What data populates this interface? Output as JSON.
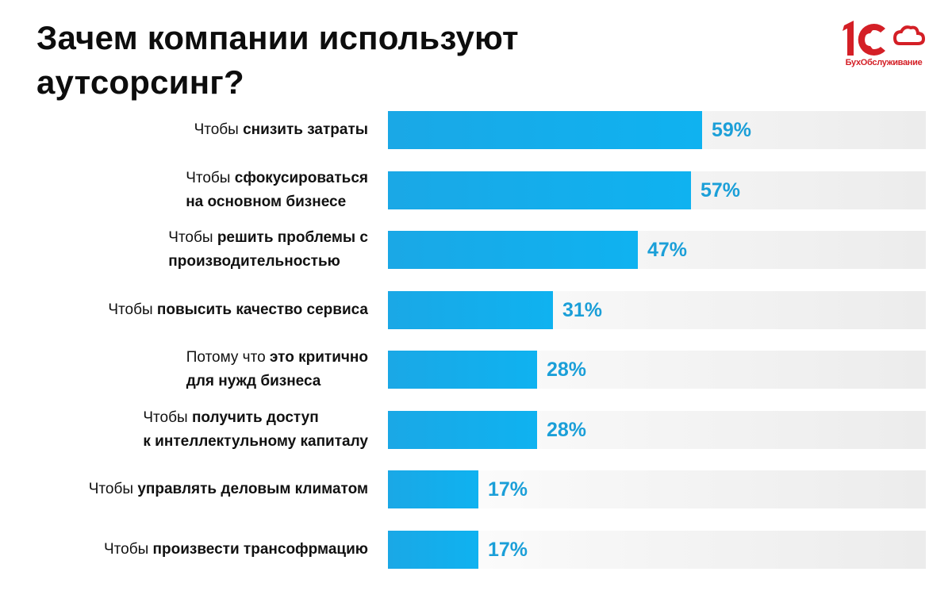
{
  "title": "Зачем компании используют аутсорсинг?",
  "logo": {
    "mark": "1С",
    "caption": "БухОбслуживание",
    "color": "#d41f26"
  },
  "colors": {
    "bar": "#10aeee",
    "value_text": "#1b9fd8",
    "track": "#eeeeee"
  },
  "chart_data": {
    "type": "bar",
    "orientation": "horizontal",
    "title": "Зачем компании используют аутсорсинг?",
    "xlim": [
      0,
      100
    ],
    "unit": "%",
    "categories": [
      {
        "normal": "Чтобы ",
        "bold": "снизить затраты",
        "lines": [
          "Чтобы снизить затраты"
        ]
      },
      {
        "normal": "Чтобы ",
        "bold": "сфокусироваться на основном бизнесе",
        "lines": [
          "Чтобы сфокусироваться",
          "на основном бизнесе"
        ]
      },
      {
        "normal": "Чтобы ",
        "bold": "решить проблемы с производительностью",
        "lines": [
          "Чтобы решить проблемы с",
          "производительностью"
        ]
      },
      {
        "normal": "Чтобы ",
        "bold": "повысить качество сервиса",
        "lines": [
          "Чтобы повысить качество сервиса"
        ]
      },
      {
        "normal": "Потому что ",
        "bold": "это критично для нужд бизнеса",
        "lines": [
          "Потому что это критично",
          "для нужд бизнеса"
        ]
      },
      {
        "normal": "Чтобы ",
        "bold": "получить доступ к интеллектульному капиталу",
        "lines": [
          "Чтобы получить доступ",
          "к интеллектульному капиталу"
        ]
      },
      {
        "normal": "Чтобы ",
        "bold": "управлять деловым климатом",
        "lines": [
          "Чтобы управлять деловым климатом"
        ]
      },
      {
        "normal": "Чтобы ",
        "bold": "произвести трансофрмацию",
        "lines": [
          "Чтобы произвести трансофрмацию"
        ]
      }
    ],
    "values": [
      59,
      57,
      47,
      31,
      28,
      28,
      17,
      17
    ],
    "value_labels": [
      "59%",
      "57%",
      "47%",
      "31%",
      "28%",
      "28%",
      "17%",
      "17%"
    ]
  }
}
